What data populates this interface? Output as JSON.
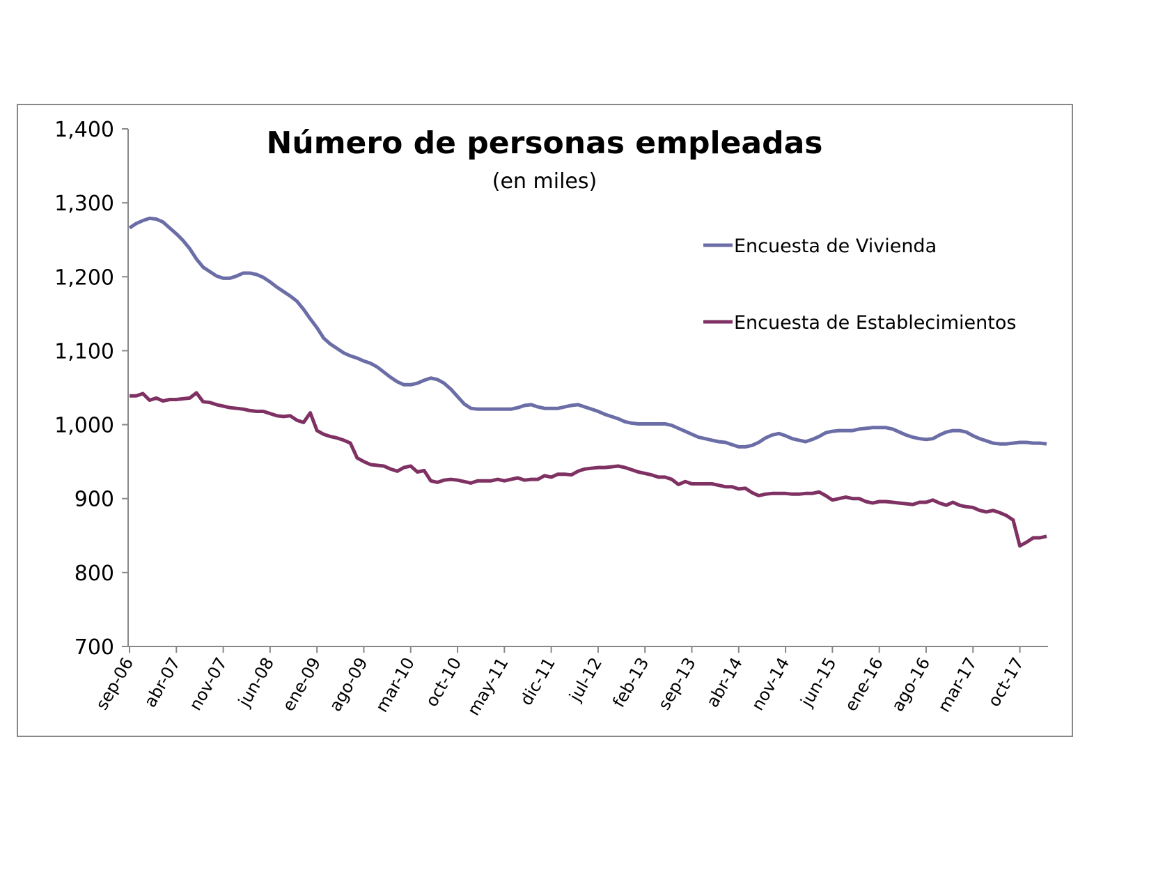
{
  "chart_data": {
    "type": "line",
    "title": "Número de personas empleadas",
    "subtitle": "(en miles)",
    "categories": [
      "sep-06",
      null,
      null,
      null,
      null,
      null,
      null,
      "abr-07",
      null,
      null,
      null,
      null,
      null,
      null,
      "nov-07",
      null,
      null,
      null,
      null,
      null,
      null,
      "jun-08",
      null,
      null,
      null,
      null,
      null,
      null,
      "ene-09",
      null,
      null,
      null,
      null,
      null,
      null,
      "ago-09",
      null,
      null,
      null,
      null,
      null,
      null,
      "mar-10",
      null,
      null,
      null,
      null,
      null,
      null,
      "oct-10",
      null,
      null,
      null,
      null,
      null,
      null,
      "may-11",
      null,
      null,
      null,
      null,
      null,
      null,
      "dic-11",
      null,
      null,
      null,
      null,
      null,
      null,
      "jul-12",
      null,
      null,
      null,
      null,
      null,
      null,
      "feb-13",
      null,
      null,
      null,
      null,
      null,
      null,
      "sep-13",
      null,
      null,
      null,
      null,
      null,
      null,
      "abr-14",
      null,
      null,
      null,
      null,
      null,
      null,
      "nov-14",
      null,
      null,
      null,
      null,
      null,
      null,
      "jun-15",
      null,
      null,
      null,
      null,
      null,
      null,
      "ene-16",
      null,
      null,
      null,
      null,
      null,
      null,
      "ago-16",
      null,
      null,
      null,
      null,
      null,
      null,
      "mar-17",
      null,
      null,
      null,
      null,
      null,
      null,
      "oct-17",
      null,
      null,
      null,
      null
    ],
    "series": [
      {
        "name": "Encuesta de Vivienda",
        "color": "#6b6da6",
        "values": [
          1266,
          1272,
          1276,
          1279,
          1278,
          1274,
          1266,
          1258,
          1249,
          1238,
          1224,
          1213,
          1207,
          1201,
          1198,
          1198,
          1201,
          1205,
          1205,
          1203,
          1199,
          1193,
          1186,
          1180,
          1174,
          1167,
          1156,
          1143,
          1131,
          1117,
          1109,
          1103,
          1097,
          1093,
          1090,
          1086,
          1083,
          1078,
          1071,
          1064,
          1058,
          1054,
          1054,
          1056,
          1060,
          1063,
          1061,
          1056,
          1048,
          1038,
          1028,
          1022,
          1021,
          1021,
          1021,
          1021,
          1021,
          1021,
          1023,
          1026,
          1027,
          1024,
          1022,
          1022,
          1022,
          1024,
          1026,
          1027,
          1024,
          1021,
          1018,
          1014,
          1011,
          1008,
          1004,
          1002,
          1001,
          1001,
          1001,
          1001,
          1001,
          999,
          995,
          991,
          987,
          983,
          981,
          979,
          977,
          976,
          973,
          970,
          970,
          972,
          976,
          982,
          986,
          988,
          985,
          981,
          979,
          977,
          980,
          984,
          989,
          991,
          992,
          992,
          992,
          994,
          995,
          996,
          996,
          996,
          994,
          990,
          986,
          983,
          981,
          980,
          981,
          986,
          990,
          992,
          992,
          990,
          985,
          981,
          978,
          975,
          974,
          974,
          975,
          976,
          976,
          975,
          975,
          974
        ]
      },
      {
        "name": "Encuesta de Establecimientos",
        "color": "#7e3162",
        "values": [
          1039,
          1039,
          1042,
          1033,
          1036,
          1032,
          1034,
          1034,
          1035,
          1036,
          1043,
          1031,
          1030,
          1027,
          1025,
          1023,
          1022,
          1021,
          1019,
          1018,
          1018,
          1015,
          1012,
          1011,
          1012,
          1006,
          1003,
          1016,
          992,
          987,
          984,
          982,
          979,
          975,
          955,
          950,
          946,
          945,
          944,
          940,
          937,
          942,
          944,
          936,
          938,
          924,
          922,
          925,
          926,
          925,
          923,
          921,
          924,
          924,
          924,
          926,
          924,
          926,
          928,
          925,
          926,
          926,
          931,
          929,
          933,
          933,
          932,
          937,
          940,
          941,
          942,
          942,
          943,
          944,
          942,
          939,
          936,
          934,
          932,
          929,
          929,
          926,
          919,
          923,
          920,
          920,
          920,
          920,
          918,
          916,
          916,
          913,
          914,
          908,
          904,
          906,
          907,
          907,
          907,
          906,
          906,
          907,
          907,
          909,
          904,
          898,
          900,
          902,
          900,
          900,
          896,
          894,
          896,
          896,
          895,
          894,
          893,
          892,
          895,
          895,
          898,
          894,
          891,
          895,
          891,
          889,
          888,
          884,
          882,
          884,
          881,
          877,
          871,
          836,
          841,
          847,
          847,
          849
        ]
      }
    ],
    "ylim": [
      700,
      1400
    ],
    "yticks": [
      700,
      800,
      900,
      {
        "value": 1000,
        "label": "1,000"
      },
      {
        "value": 1100,
        "label": "1,100"
      },
      {
        "value": 1200,
        "label": "1,200"
      },
      {
        "value": 1300,
        "label": "1,300"
      },
      {
        "value": 1400,
        "label": "1,400"
      }
    ]
  }
}
